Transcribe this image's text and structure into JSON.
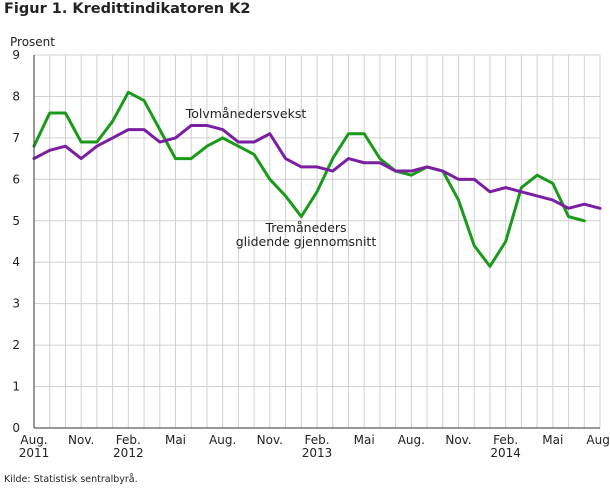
{
  "figure_title": "Figur 1. Kredittindikatoren K2",
  "source": "Kilde: Statistisk sentralbyrå.",
  "colors": {
    "green": "#1a9a1a",
    "purple": "#7b1fa2",
    "grid": "#d0d0d0",
    "axis": "#333333"
  },
  "chart_data": {
    "type": "line",
    "ylabel": "Prosent",
    "ylim": [
      0,
      9
    ],
    "yticks": [
      0,
      1,
      2,
      3,
      4,
      5,
      6,
      7,
      8,
      9
    ],
    "x": [
      "2011-08",
      "2011-09",
      "2011-10",
      "2011-11",
      "2011-12",
      "2012-01",
      "2012-02",
      "2012-03",
      "2012-04",
      "2012-05",
      "2012-06",
      "2012-07",
      "2012-08",
      "2012-09",
      "2012-10",
      "2012-11",
      "2012-12",
      "2013-01",
      "2013-02",
      "2013-03",
      "2013-04",
      "2013-05",
      "2013-06",
      "2013-07",
      "2013-08",
      "2013-09",
      "2013-10",
      "2013-11",
      "2013-12",
      "2014-01",
      "2014-02",
      "2014-03",
      "2014-04",
      "2014-05",
      "2014-06",
      "2014-07",
      "2014-08"
    ],
    "xticks": [
      {
        "x": "2011-08",
        "lines": [
          "Aug.",
          "2011"
        ]
      },
      {
        "x": "2011-11",
        "lines": [
          "Nov."
        ]
      },
      {
        "x": "2012-02",
        "lines": [
          "Feb.",
          "2012"
        ]
      },
      {
        "x": "2012-05",
        "lines": [
          "Mai"
        ]
      },
      {
        "x": "2012-08",
        "lines": [
          "Aug."
        ]
      },
      {
        "x": "2012-11",
        "lines": [
          "Nov."
        ]
      },
      {
        "x": "2013-02",
        "lines": [
          "Feb.",
          "2013"
        ]
      },
      {
        "x": "2013-05",
        "lines": [
          "Mai"
        ]
      },
      {
        "x": "2013-08",
        "lines": [
          "Aug."
        ]
      },
      {
        "x": "2013-11",
        "lines": [
          "Nov."
        ]
      },
      {
        "x": "2014-02",
        "lines": [
          "Feb.",
          "2014"
        ]
      },
      {
        "x": "2014-05",
        "lines": [
          "Mai"
        ]
      },
      {
        "x": "2014-08",
        "lines": [
          "Aug."
        ]
      }
    ],
    "series": [
      {
        "name": "Tremåneders glidende gjennomsnitt",
        "label_lines": [
          "Tremåneders",
          "glidende gjennomsnitt"
        ],
        "color": "#1a9a1a",
        "values": [
          6.8,
          7.6,
          7.6,
          6.9,
          6.9,
          7.4,
          8.1,
          7.9,
          7.2,
          6.5,
          6.5,
          6.8,
          7.0,
          6.8,
          6.6,
          6.0,
          5.6,
          5.1,
          5.7,
          6.5,
          7.1,
          7.1,
          6.5,
          6.2,
          6.1,
          6.3,
          6.2,
          5.5,
          4.4,
          3.9,
          4.5,
          5.8,
          6.1,
          5.9,
          5.1,
          5.0,
          null
        ]
      },
      {
        "name": "Tolvmånedersvekst",
        "label_lines": [
          "Tolvmånedersvekst"
        ],
        "color": "#7b1fa2",
        "values": [
          6.5,
          6.7,
          6.8,
          6.5,
          6.8,
          7.0,
          7.2,
          7.2,
          6.9,
          7.0,
          7.3,
          7.3,
          7.2,
          6.9,
          6.9,
          7.1,
          6.5,
          6.3,
          6.3,
          6.2,
          6.5,
          6.4,
          6.4,
          6.2,
          6.2,
          6.3,
          6.2,
          6.0,
          6.0,
          5.7,
          5.8,
          5.7,
          5.6,
          5.5,
          5.3,
          5.4,
          5.3
        ]
      }
    ]
  }
}
